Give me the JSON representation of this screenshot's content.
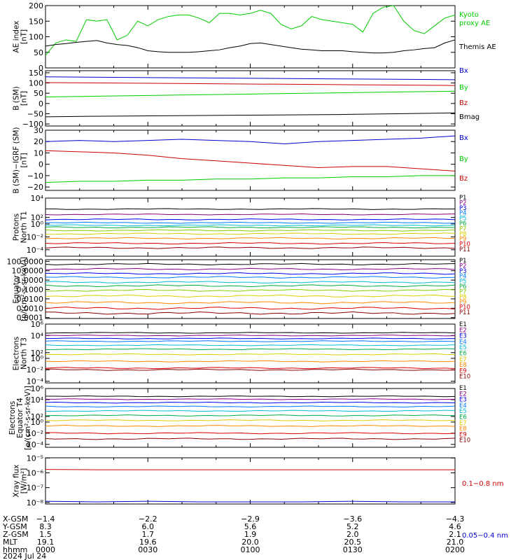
{
  "chart_data": [
    {
      "panel": "ae_index",
      "type": "line",
      "ylabel": [
        "AE index",
        "[nT]"
      ],
      "ylim": [
        0,
        200
      ],
      "yticks": [
        "0",
        "50",
        "100",
        "150",
        "200"
      ],
      "legend": [
        "Kyoto proxy AE",
        "Themis AE"
      ],
      "legend_lines": [
        "Kyoto",
        "proxy AE",
        "Themis AE"
      ],
      "x_minutes": [
        0,
        3,
        6,
        9,
        12,
        15,
        18,
        21,
        24,
        27,
        30,
        33,
        36,
        39,
        42,
        45,
        48,
        51,
        54,
        57,
        60,
        63,
        66,
        69,
        72,
        75,
        78,
        81,
        84,
        87,
        90,
        93,
        96,
        99,
        102,
        105,
        108,
        111,
        114,
        117,
        120
      ],
      "series": [
        {
          "name": "Kyoto proxy AE",
          "color": "#00cc00",
          "values": [
            40,
            80,
            90,
            85,
            155,
            150,
            155,
            90,
            105,
            150,
            135,
            155,
            165,
            170,
            170,
            160,
            145,
            175,
            175,
            170,
            175,
            185,
            175,
            140,
            125,
            135,
            165,
            155,
            150,
            145,
            140,
            115,
            175,
            195,
            200,
            150,
            120,
            110,
            135,
            160,
            170
          ]
        },
        {
          "name": "Themis AE",
          "color": "#000000",
          "values": [
            70,
            75,
            78,
            82,
            85,
            88,
            80,
            75,
            72,
            65,
            55,
            52,
            50,
            50,
            50,
            52,
            55,
            58,
            65,
            70,
            78,
            80,
            75,
            70,
            65,
            60,
            58,
            55,
            55,
            55,
            52,
            50,
            48,
            48,
            50,
            55,
            58,
            62,
            65,
            80,
            90
          ]
        }
      ]
    },
    {
      "panel": "b_sm",
      "type": "line",
      "ylabel": [
        "B (SM)",
        "[nT]"
      ],
      "ylim": [
        -110,
        160
      ],
      "yticks": [
        "150",
        "100",
        "50",
        "0",
        "−50",
        "−100"
      ],
      "legend": [
        "Bx",
        "By",
        "Bz",
        "Bmag"
      ],
      "series": [
        {
          "name": "Bx",
          "color": "#0000cc",
          "values": [
            130,
            128,
            126,
            124,
            122,
            120,
            118,
            116
          ]
        },
        {
          "name": "By",
          "color": "#00cc00",
          "values": [
            32,
            36,
            40,
            44,
            48,
            52,
            56,
            60
          ]
        },
        {
          "name": "Bz",
          "color": "#cc0000",
          "values": [
            102,
            100,
            98,
            96,
            94,
            92,
            90,
            88
          ]
        },
        {
          "name": "Bmag",
          "color": "#000000",
          "values": [
            -65,
            -62,
            -60,
            -58,
            -56,
            -54,
            -50,
            -46
          ]
        }
      ]
    },
    {
      "panel": "b_sm_igrf",
      "type": "line",
      "ylabel": [
        "B (SM)−IGRF (SM)",
        "[nT]"
      ],
      "ylim": [
        -23,
        30
      ],
      "yticks": [
        "30",
        "20",
        "10",
        "0",
        "−10",
        "−20"
      ],
      "legend": [
        "Bx",
        "By",
        "Bz"
      ],
      "x_minutes": [
        0,
        10,
        20,
        30,
        40,
        50,
        60,
        70,
        80,
        90,
        100,
        110,
        120
      ],
      "series": [
        {
          "name": "Bx",
          "color": "#0000cc",
          "values": [
            20,
            21,
            20,
            21,
            22,
            21,
            20,
            18,
            20,
            21,
            22,
            23,
            25
          ]
        },
        {
          "name": "By",
          "color": "#00cc00",
          "values": [
            -16,
            -15,
            -15,
            -14,
            -14,
            -13,
            -13,
            -12,
            -12,
            -11,
            -11,
            -10,
            -10
          ]
        },
        {
          "name": "Bz",
          "color": "#cc0000",
          "values": [
            12,
            11,
            10,
            8,
            5,
            3,
            1,
            -1,
            -3,
            -2,
            -2,
            -4,
            -6
          ]
        }
      ]
    },
    {
      "panel": "protons_north_t1",
      "type": "line",
      "scale": "log",
      "ylabel": [
        "Protons",
        "North T1"
      ],
      "ylim": [
        1e-05,
        10000
      ],
      "yticks": [
        "10⁴",
        "10²",
        "10⁰",
        "10⁻²",
        "10⁻⁴"
      ],
      "legend": [
        "P1",
        "P2",
        "P3",
        "P4",
        "P5",
        "P6",
        "P7",
        "P8",
        "P9",
        "P10",
        "P11"
      ],
      "levels": [
        200,
        30,
        5,
        1.5,
        0.6,
        0.3,
        0.1,
        0.03,
        0.006,
        0.001,
        0.0002
      ]
    },
    {
      "panel": "protons_equator",
      "type": "line",
      "scale": "log",
      "ylabel": [
        "Equator",
        "[p/(cm²-s-sr-keV)]"
      ],
      "ylim": [
        8e-05,
        150
      ],
      "yticks": [
        "100.0000",
        "10.0000",
        "1.0000",
        "0.1000",
        "0.0100",
        "0.0010",
        "0.0001"
      ],
      "legend": [
        "P1",
        "P2",
        "P3",
        "P4",
        "P5",
        "P6",
        "P7",
        "P8",
        "P9",
        "P10",
        "P11"
      ],
      "levels": [
        50,
        15,
        5,
        2,
        0.6,
        0.25,
        0.08,
        0.02,
        0.004,
        0.001,
        0.0003
      ]
    },
    {
      "panel": "electrons_north_t3",
      "type": "line",
      "scale": "log",
      "ylabel": [
        "Electrons",
        "North T3"
      ],
      "ylim": [
        5e-05,
        1000000
      ],
      "yticks": [
        "10⁶",
        "10⁴",
        "10²",
        "10⁰",
        "10⁻²",
        "10⁻⁴"
      ],
      "legend": [
        "E1",
        "E2",
        "E3",
        "E4",
        "E5",
        "E6",
        "E7",
        "E8",
        "E9",
        "E10"
      ],
      "levels": [
        30000,
        10000,
        3000,
        1000,
        200,
        40,
        5,
        0.3,
        0.02,
        0.01
      ]
    },
    {
      "panel": "electrons_equator",
      "type": "line",
      "scale": "log",
      "ylabel": [
        "Electrons",
        "Equator T4",
        "[e/(cm²-s-sr-keV)]"
      ],
      "ylim": [
        3e-05,
        1000000
      ],
      "yticks": [
        "10⁶",
        "10⁴",
        "10²",
        "10⁰",
        "10⁻²",
        "10⁻⁴"
      ],
      "legend": [
        "E1",
        "E2",
        "E3",
        "E4",
        "E5",
        "E6",
        "E7",
        "E8",
        "E9",
        "E10"
      ],
      "levels": [
        40000,
        12000,
        3000,
        600,
        100,
        15,
        2,
        0.2,
        0.01,
        0.001
      ]
    },
    {
      "panel": "xray_flux",
      "type": "line",
      "scale": "log",
      "ylabel": [
        "Xray flux",
        "[W/m²]"
      ],
      "ylim": [
        7.9e-09,
        1.03e-05
      ],
      "yticks": [
        "10⁻⁵",
        "10⁻⁶",
        "10⁻⁷",
        "10⁻⁸"
      ],
      "legend": [
        "0.1−0.8 nm",
        "0.05−0.4 nm"
      ],
      "series": [
        {
          "name": "0.1−0.8 nm",
          "color": "#cc0000",
          "values": [
            1.7e-06,
            1.6e-06,
            1.6e-06,
            1.6e-06,
            1.6e-06,
            1.6e-06,
            1.6e-06,
            1.6e-06,
            1.6e-06
          ]
        },
        {
          "name": "0.05−0.4 nm",
          "color": "#0000cc",
          "values": [
            1.2e-08,
            1.1e-08,
            1.2e-08,
            1.1e-08,
            1.1e-08,
            1.1e-08,
            1.2e-08,
            1.1e-08,
            1.1e-08
          ]
        }
      ]
    }
  ],
  "ephemeris": {
    "row_labels": [
      "X-GSM",
      "Y-GSM",
      "Z-GSM",
      "MLT",
      "hhmm"
    ],
    "columns": [
      [
        "−1.4",
        "8.3",
        "1.5",
        "19.1",
        "0000"
      ],
      [
        "−2.2",
        "6.0",
        "1.7",
        "19.6",
        "0030"
      ],
      [
        "−2.9",
        "5.6",
        "1.9",
        "20.0",
        "0100"
      ],
      [
        "−3.6",
        "5.2",
        "2.0",
        "20.5",
        "0130"
      ],
      [
        "−4.3",
        "4.6",
        "2.1",
        "21.0",
        "0200"
      ]
    ],
    "date": "2024 Jul 24"
  },
  "level_colors_11": [
    "#000000",
    "#880088",
    "#0000ee",
    "#0077ff",
    "#00bbdd",
    "#00aa44",
    "#88cc00",
    "#ddcc00",
    "#ff8800",
    "#dd0000",
    "#880000"
  ],
  "level_colors_10": [
    "#000000",
    "#880088",
    "#0000ee",
    "#0077ff",
    "#00bbdd",
    "#00aa44",
    "#ddcc00",
    "#ff8800",
    "#dd0000",
    "#880000"
  ]
}
